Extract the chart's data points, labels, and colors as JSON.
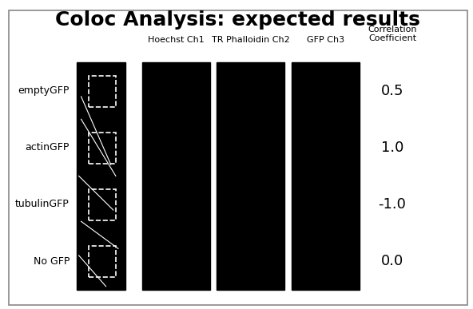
{
  "title": "Coloc Analysis: expected results",
  "title_fontsize": 18,
  "background_color": "#ffffff",
  "panel_bg": "#000000",
  "row_labels": [
    "emptyGFP",
    "actinGFP",
    "tubulinGFP",
    "No GFP"
  ],
  "col_headers": [
    "Hoechst Ch1",
    "TR Phalloidin Ch2",
    "GFP Ch3",
    "Correlation\nCoefficient"
  ],
  "corr_values": [
    "0.5",
    "1.0",
    "-1.0",
    "0.0"
  ],
  "num_rows": 4,
  "num_cols": 4,
  "header_fontsize": 8,
  "label_fontsize": 9,
  "value_fontsize": 13,
  "border_color": "#000000",
  "outer_border_color": "#555555"
}
